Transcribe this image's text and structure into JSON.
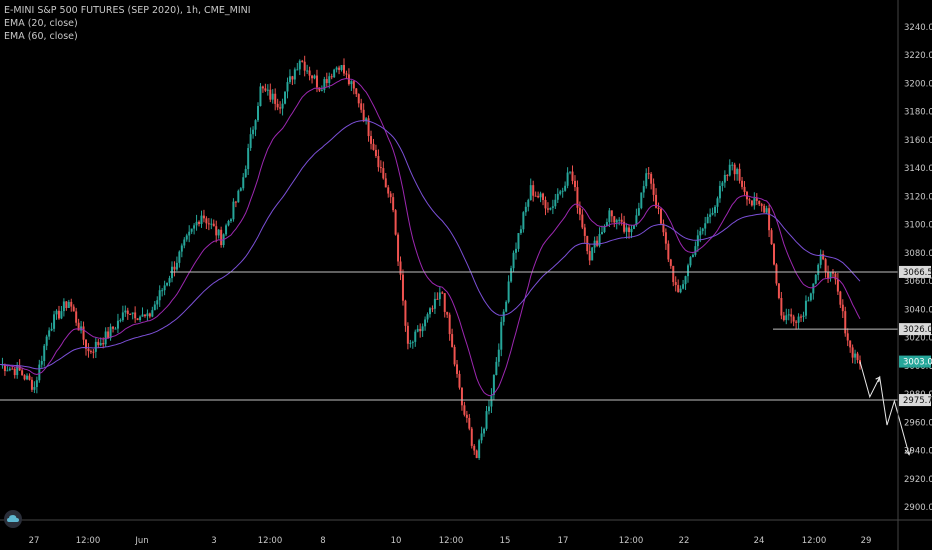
{
  "legend": {
    "symbol": "E-MINI S&P 500 FUTURES (SEP 2020), 1h, CME_MINI",
    "ema20": "EMA (20, close)",
    "ema60": "EMA (60, close)"
  },
  "colors": {
    "background": "#000000",
    "up": "#26a69a",
    "down": "#ef5350",
    "ema20": "#9c27b0",
    "ema60": "#7b4fd6",
    "hline": "#c0c0c0",
    "last_price": "#26a69a",
    "text": "#c8c8c8"
  },
  "chart_data": {
    "type": "candlestick",
    "title": "E-MINI S&P 500 FUTURES (SEP 2020), 1h, CME_MINI",
    "y_ticks": [
      2900,
      2920,
      2940,
      2960,
      2980,
      3000,
      3020,
      3040,
      3060,
      3080,
      3100,
      3120,
      3140,
      3160,
      3180,
      3200,
      3220,
      3240
    ],
    "y_tick_labels": [
      "2900.00",
      "2920.00",
      "2940.00",
      "2960.00",
      "2980.00",
      "3000.00",
      "3020.00",
      "3040.00",
      "3060.00",
      "3080.00",
      "3100.00",
      "3120.00",
      "3140.00",
      "3160.00",
      "3180.00",
      "3200.00",
      "3220.00",
      "3240.00"
    ],
    "ylim": [
      2895,
      3248
    ],
    "x_ticks": [
      "27",
      "12:00",
      "Jun",
      "3",
      "12:00",
      "8",
      "10",
      "12:00",
      "15",
      "17",
      "12:00",
      "22",
      "24",
      "12:00",
      "29"
    ],
    "horizontal_levels": [
      {
        "value": 3066.5,
        "label": "3066.50",
        "from": "May 31"
      },
      {
        "value": 3026.0,
        "label": "3026.00",
        "from": "Jun 23"
      },
      {
        "value": 2975.75,
        "label": "2975.75",
        "from": "start"
      }
    ],
    "last_price": {
      "value": 3003.0,
      "label": "3003.00"
    },
    "anchors": [
      {
        "t": 0,
        "p": 3001
      },
      {
        "t": 8,
        "p": 2996
      },
      {
        "t": 14,
        "p": 2985
      },
      {
        "t": 20,
        "p": 3028
      },
      {
        "t": 28,
        "p": 3046
      },
      {
        "t": 36,
        "p": 3010
      },
      {
        "t": 44,
        "p": 3022
      },
      {
        "t": 52,
        "p": 3040
      },
      {
        "t": 60,
        "p": 3033
      },
      {
        "t": 66,
        "p": 3054
      },
      {
        "t": 74,
        "p": 3082
      },
      {
        "t": 82,
        "p": 3108
      },
      {
        "t": 90,
        "p": 3090
      },
      {
        "t": 98,
        "p": 3125
      },
      {
        "t": 106,
        "p": 3196
      },
      {
        "t": 114,
        "p": 3186
      },
      {
        "t": 122,
        "p": 3218
      },
      {
        "t": 130,
        "p": 3198
      },
      {
        "t": 138,
        "p": 3214
      },
      {
        "t": 146,
        "p": 3188
      },
      {
        "t": 154,
        "p": 3145
      },
      {
        "t": 160,
        "p": 3110
      },
      {
        "t": 166,
        "p": 3012
      },
      {
        "t": 172,
        "p": 3028
      },
      {
        "t": 180,
        "p": 3052
      },
      {
        "t": 188,
        "p": 2972
      },
      {
        "t": 194,
        "p": 2935
      },
      {
        "t": 200,
        "p": 2982
      },
      {
        "t": 208,
        "p": 3072
      },
      {
        "t": 216,
        "p": 3125
      },
      {
        "t": 224,
        "p": 3112
      },
      {
        "t": 232,
        "p": 3138
      },
      {
        "t": 240,
        "p": 3078
      },
      {
        "t": 248,
        "p": 3108
      },
      {
        "t": 256,
        "p": 3092
      },
      {
        "t": 264,
        "p": 3138
      },
      {
        "t": 270,
        "p": 3092
      },
      {
        "t": 276,
        "p": 3048
      },
      {
        "t": 282,
        "p": 3082
      },
      {
        "t": 290,
        "p": 3112
      },
      {
        "t": 298,
        "p": 3143
      },
      {
        "t": 306,
        "p": 3115
      },
      {
        "t": 312,
        "p": 3112
      },
      {
        "t": 318,
        "p": 3035
      },
      {
        "t": 326,
        "p": 3035
      },
      {
        "t": 334,
        "p": 3075
      },
      {
        "t": 340,
        "p": 3058
      },
      {
        "t": 346,
        "p": 3012
      },
      {
        "t": 350,
        "p": 3003
      }
    ],
    "projection": [
      {
        "t": 350,
        "p": 3003
      },
      {
        "t": 354,
        "p": 2978
      },
      {
        "t": 358,
        "p": 2992
      },
      {
        "t": 361,
        "p": 2958
      },
      {
        "t": 364,
        "p": 2975
      },
      {
        "t": 370,
        "p": 2937
      }
    ]
  }
}
